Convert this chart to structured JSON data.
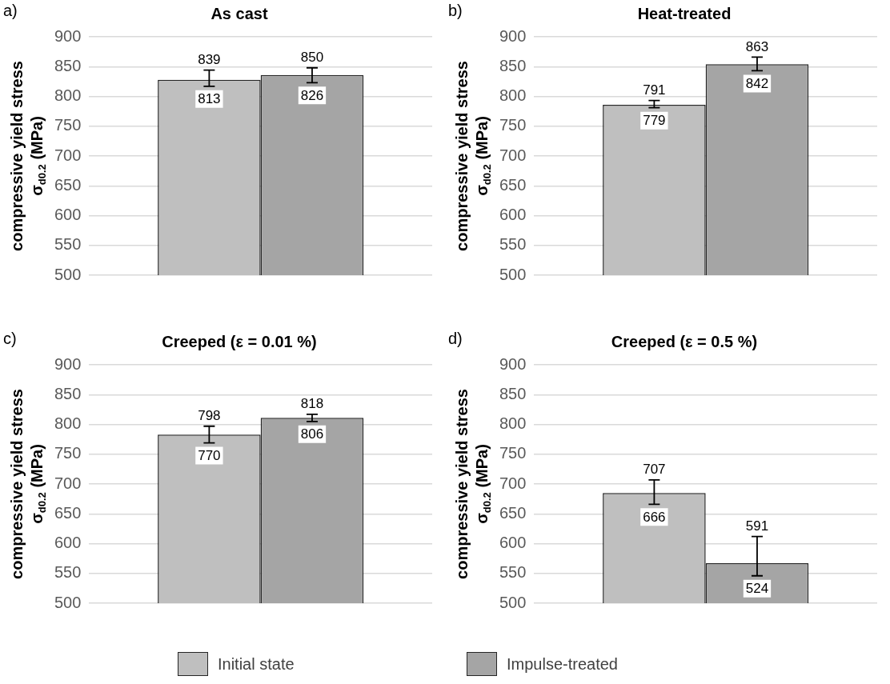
{
  "chart_data": [
    {
      "type": "bar",
      "title": "As cast",
      "ylabel": "compressive yield stress\nσ$_{d0.2}$ (MPa)",
      "categories": [
        null
      ],
      "series": [
        {
          "name": "Initial state",
          "color": "#bfbfbf",
          "values": [
            828
          ],
          "errors": [
            [
              817,
              844
            ]
          ]
        },
        {
          "name": "Impulse-treated",
          "color": "#a5a5a5",
          "values": [
            836
          ],
          "errors": [
            [
              823,
              848
            ]
          ]
        }
      ],
      "ylim": [
        500,
        900
      ],
      "yticks": [
        500,
        550,
        600,
        650,
        700,
        750,
        800,
        850,
        900
      ],
      "grid": "y",
      "legend": "bottom",
      "annotations": [
        "a)",
        {
          "text": "839",
          "y": 844
        },
        {
          "text": "813",
          "y": 817
        },
        {
          "text": "850",
          "y": 848
        },
        {
          "text": "826",
          "y": 823
        }
      ]
    },
    {
      "type": "bar",
      "title": "Heat-treated",
      "ylabel": "compressive yield stress\nσ$_{d0.2}$ (MPa)",
      "categories": [
        null
      ],
      "series": [
        {
          "color": "#bfbfbf",
          "values": [
            786
          ],
          "errors": [
            [
              781,
              793
            ]
          ]
        },
        {
          "color": "#a5a5a5",
          "values": [
            854
          ],
          "errors": [
            [
              843,
              866
            ]
          ]
        }
      ],
      "ylim": [
        500,
        900
      ],
      "yticks": [
        500,
        550,
        600,
        650,
        700,
        750,
        800,
        850,
        900
      ],
      "grid": "y",
      "annotations": [
        "b)",
        {
          "text": "791",
          "y": 793
        },
        {
          "text": "779",
          "y": 781
        },
        {
          "text": "863",
          "y": 866
        },
        {
          "text": "842",
          "y": 843
        }
      ]
    },
    {
      "type": "bar",
      "title": "Creeped (ε = 0.01 %)",
      "ylabel": "compressive yield stress\nσ$_{d0.2}$ (MPa)",
      "categories": [
        null
      ],
      "series": [
        {
          "color": "#bfbfbf",
          "values": [
            783
          ],
          "errors": [
            [
              769,
              797
            ]
          ]
        },
        {
          "color": "#a5a5a5",
          "values": [
            811
          ],
          "errors": [
            [
              805,
              817
            ]
          ]
        }
      ],
      "ylim": [
        500,
        900
      ],
      "yticks": [
        500,
        550,
        600,
        650,
        700,
        750,
        800,
        850,
        900
      ],
      "grid": "y",
      "annotations": [
        "c)",
        {
          "text": "798",
          "y": 797
        },
        {
          "text": "770",
          "y": 769
        },
        {
          "text": "818",
          "y": 817
        },
        {
          "text": "806",
          "y": 805
        }
      ]
    },
    {
      "type": "bar",
      "title": "Creeped (ε = 0.5 %)",
      "ylabel": "compressive yield stress\nσ$_{d0.2}$ (MPa)",
      "categories": [
        null
      ],
      "series": [
        {
          "color": "#bfbfbf",
          "values": [
            685
          ],
          "errors": [
            [
              666,
              707
            ]
          ]
        },
        {
          "color": "#a5a5a5",
          "values": [
            567
          ],
          "errors": [
            [
              546,
              612
            ]
          ]
        }
      ],
      "ylim": [
        500,
        900
      ],
      "yticks": [
        500,
        550,
        600,
        650,
        700,
        750,
        800,
        850,
        900
      ],
      "grid": "y",
      "annotations": [
        "d)",
        {
          "text": "707",
          "y": 707
        },
        {
          "text": "666",
          "y": 666
        },
        {
          "text": "591",
          "y": 612
        },
        {
          "text": "524",
          "y": 546
        }
      ]
    }
  ]
}
